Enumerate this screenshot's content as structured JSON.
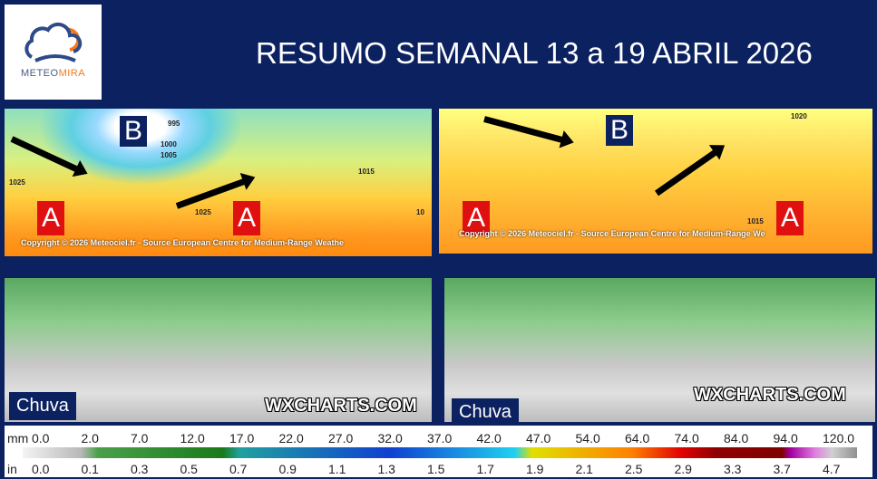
{
  "logo": {
    "brand_part1": "METEO",
    "brand_part2": "MIRA",
    "colors": {
      "blue": "#2e4a8a",
      "orange": "#f07a1a"
    }
  },
  "title": "RESUMO SEMANAL 13 a 19 ABRIL 2026",
  "maps_top": [
    {
      "labels": [
        "B",
        "A",
        "A"
      ],
      "isobars": [
        "995",
        "1000",
        "1005",
        "1025",
        "1025",
        "1015",
        "10"
      ],
      "copyright": "Copyright © 2026 Meteociel.fr - Source European Centre for Medium-Range Weathe"
    },
    {
      "labels": [
        "B",
        "A",
        "A"
      ],
      "isobars": [
        "1020",
        "1015"
      ],
      "copyright": "Copyright © 2026 Meteociel.fr - Source European Centre for Medium-Range We"
    }
  ],
  "maps_bottom": [
    {
      "label": "Chuva",
      "watermark": "WXCHARTS.COM"
    },
    {
      "label": "Chuva",
      "watermark": "WXCHARTS.COM"
    }
  ],
  "legend": {
    "mm_unit": "mm",
    "mm": [
      "0.0",
      "2.0",
      "7.0",
      "12.0",
      "17.0",
      "22.0",
      "27.0",
      "32.0",
      "37.0",
      "42.0",
      "47.0",
      "54.0",
      "64.0",
      "74.0",
      "84.0",
      "94.0",
      "120.0"
    ],
    "in_unit": "in",
    "in": [
      "0.0",
      "0.1",
      "0.3",
      "0.5",
      "0.7",
      "0.9",
      "1.1",
      "1.3",
      "1.5",
      "1.7",
      "1.9",
      "2.1",
      "2.5",
      "2.9",
      "3.3",
      "3.7",
      "4.7"
    ]
  },
  "colors": {
    "background": "#0b2160",
    "high_pressure": "#e01010"
  }
}
